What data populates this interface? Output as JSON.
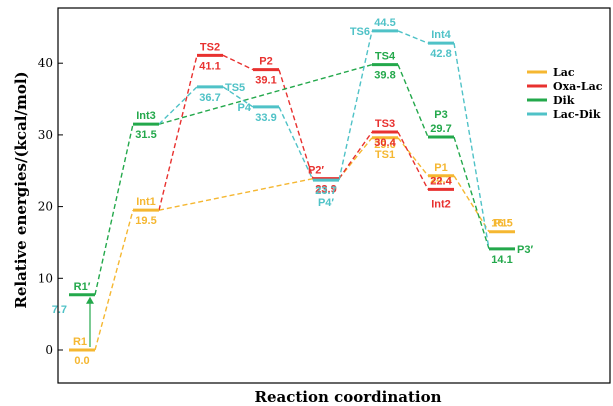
{
  "chart_data": {
    "type": "line",
    "xlabel": "Reaction coordination",
    "ylabel": "Relative energies/(kcal/mol)",
    "ylim": [
      -5,
      47
    ],
    "yticks": [
      0,
      10,
      20,
      30,
      40
    ],
    "x_ticks_shown": false,
    "grid": false,
    "legend_position": "right",
    "colors": {
      "Lac": "#f5b731",
      "Oxa-Lac": "#e8312f",
      "Dik": "#23a84b",
      "Lac-Dik": "#4fc2c7"
    },
    "series": [
      {
        "name": "Lac",
        "points": [
          {
            "x": 1,
            "label": "R1",
            "value": 0.0
          },
          {
            "x": 2,
            "label": "Int1",
            "value": 19.5
          },
          {
            "x": 6,
            "label": "TS1",
            "value": 29.6
          },
          {
            "x": 7,
            "label": "P1",
            "value": 24.3
          },
          {
            "x": 8,
            "label": "P1′",
            "value": 16.5
          }
        ]
      },
      {
        "name": "Oxa-Lac",
        "points": [
          {
            "x": 3,
            "label": "TS2",
            "value": 41.1
          },
          {
            "x": 4,
            "label": "P2",
            "value": 39.1
          },
          {
            "x": 5,
            "label": "P2′",
            "value": 23.9
          },
          {
            "x": 6,
            "label": "TS3",
            "value": 30.4
          },
          {
            "x": 7,
            "label": "Int2",
            "value": 22.4
          }
        ]
      },
      {
        "name": "Dik",
        "points": [
          {
            "x": 1,
            "label": "R1′",
            "value": 7.7
          },
          {
            "x": 2,
            "label": "Int3",
            "value": 31.5
          },
          {
            "x": 6,
            "label": "TS4",
            "value": 39.8
          },
          {
            "x": 7,
            "label": "P3",
            "value": 29.7
          },
          {
            "x": 8,
            "label": "P3′",
            "value": 14.1
          }
        ]
      },
      {
        "name": "Lac-Dik",
        "points": [
          {
            "x": 3,
            "label": "TS5",
            "value": 36.7
          },
          {
            "x": 4,
            "label": "P4",
            "value": 33.9
          },
          {
            "x": 5,
            "label": "P4′",
            "value": 23.7
          },
          {
            "x": 6,
            "label": "TS6",
            "value": 44.5
          },
          {
            "x": 7,
            "label": "Int4",
            "value": 42.8
          }
        ]
      }
    ],
    "connections": [
      {
        "series": "Lac",
        "from": "R1",
        "to": "Int1"
      },
      {
        "series": "Lac",
        "from": "Int1",
        "to": "P2′"
      },
      {
        "series": "Lac",
        "from": "P2′",
        "to": "TS1"
      },
      {
        "series": "Lac",
        "from": "TS1",
        "to": "P1"
      },
      {
        "series": "Lac",
        "from": "P1",
        "to": "P1′"
      },
      {
        "series": "Oxa-Lac",
        "from": "Int1",
        "to": "TS2"
      },
      {
        "series": "Oxa-Lac",
        "from": "TS2",
        "to": "P2"
      },
      {
        "series": "Oxa-Lac",
        "from": "P2",
        "to": "P2′"
      },
      {
        "series": "Oxa-Lac",
        "from": "P2′",
        "to": "TS3"
      },
      {
        "series": "Oxa-Lac",
        "from": "TS3",
        "to": "Int2"
      },
      {
        "series": "Dik",
        "from": "R1′",
        "to": "Int3"
      },
      {
        "series": "Dik",
        "from": "Int3",
        "to": "TS4"
      },
      {
        "series": "Dik",
        "from": "TS4",
        "to": "P3"
      },
      {
        "series": "Dik",
        "from": "P3",
        "to": "P3′"
      },
      {
        "series": "Lac-Dik",
        "from": "Int3",
        "to": "TS5"
      },
      {
        "series": "Lac-Dik",
        "from": "TS5",
        "to": "P4"
      },
      {
        "series": "Lac-Dik",
        "from": "P4",
        "to": "P4′"
      },
      {
        "series": "Lac-Dik",
        "from": "P4′",
        "to": "TS6"
      },
      {
        "series": "Lac-Dik",
        "from": "TS6",
        "to": "Int4"
      },
      {
        "series": "Lac-Dik",
        "from": "Int4",
        "to": "P3′"
      }
    ],
    "arrow": {
      "series": "Dik",
      "from_label": "R1",
      "to_label": "R1′"
    }
  }
}
